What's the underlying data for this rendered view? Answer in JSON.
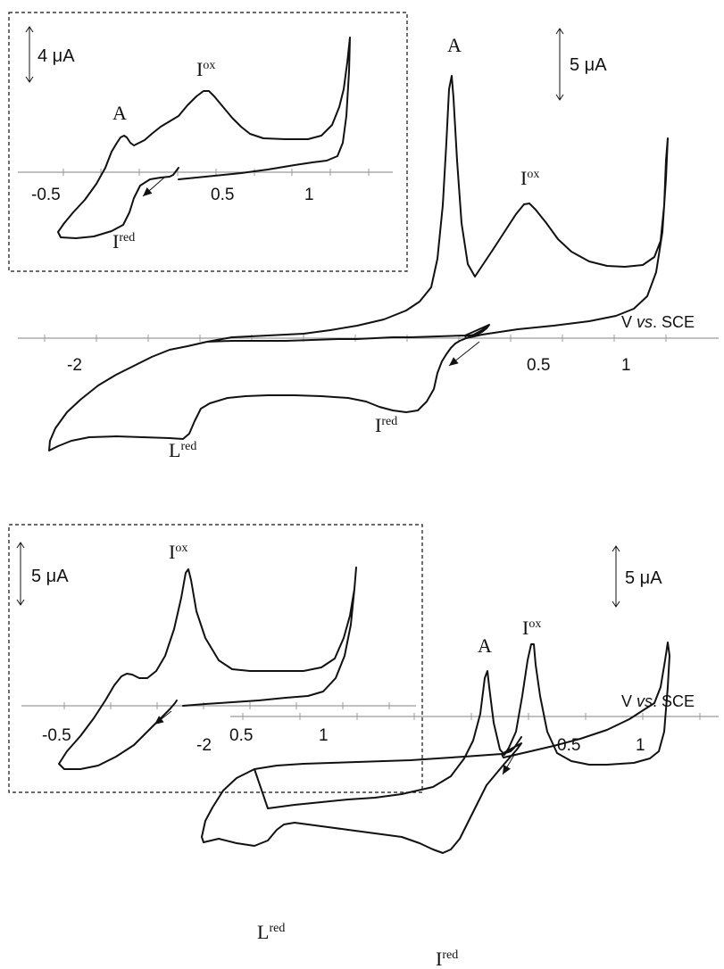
{
  "chart_data": [
    {
      "type": "line",
      "id": "top-main",
      "xlabel_prefix": "V ",
      "xlabel_italic": "vs",
      "xlabel_suffix": ". SCE",
      "ticks": [
        "-2",
        "0.5",
        "1"
      ],
      "scale_bar": "5 μA",
      "peaks": [
        {
          "base": "A",
          "sup": ""
        },
        {
          "base": "I",
          "sup": "ox"
        },
        {
          "base": "I",
          "sup": "red"
        },
        {
          "base": "L",
          "sup": "red"
        }
      ],
      "curve": [
        [
          548,
          364
        ],
        [
          545,
          368
        ],
        [
          540,
          372
        ],
        [
          536,
          374
        ],
        [
          531,
          375
        ],
        [
          527,
          376
        ],
        [
          521,
          376
        ],
        [
          460,
          378
        ],
        [
          440,
          378
        ],
        [
          420,
          379
        ],
        [
          400,
          380
        ],
        [
          378,
          380
        ],
        [
          350,
          381
        ],
        [
          320,
          382
        ],
        [
          290,
          382
        ],
        [
          260,
          382
        ],
        [
          232,
          383
        ],
        [
          210,
          388
        ],
        [
          190,
          392
        ],
        [
          170,
          400
        ],
        [
          150,
          410
        ],
        [
          130,
          420
        ],
        [
          110,
          432
        ],
        [
          90,
          448
        ],
        [
          75,
          462
        ],
        [
          62,
          480
        ],
        [
          56,
          494
        ],
        [
          55,
          505
        ],
        [
          65,
          500
        ],
        [
          80,
          494
        ],
        [
          100,
          490
        ],
        [
          130,
          489
        ],
        [
          160,
          490
        ],
        [
          190,
          491
        ],
        [
          205,
          492
        ],
        [
          212,
          486
        ],
        [
          218,
          472
        ],
        [
          225,
          458
        ],
        [
          235,
          452
        ],
        [
          255,
          446
        ],
        [
          275,
          444
        ],
        [
          300,
          443
        ],
        [
          330,
          443
        ],
        [
          360,
          444
        ],
        [
          390,
          446
        ],
        [
          410,
          450
        ],
        [
          425,
          456
        ],
        [
          440,
          460
        ],
        [
          455,
          462
        ],
        [
          468,
          460
        ],
        [
          478,
          450
        ],
        [
          486,
          436
        ],
        [
          490,
          418
        ],
        [
          495,
          405
        ],
        [
          500,
          397
        ],
        [
          505,
          390
        ],
        [
          510,
          385
        ],
        [
          515,
          382
        ],
        [
          520,
          380
        ],
        [
          527,
          377
        ],
        [
          540,
          370
        ],
        [
          548,
          364
        ],
        [
          521,
          376
        ],
        [
          522,
          379
        ],
        [
          540,
          375
        ],
        [
          580,
          369
        ],
        [
          620,
          365
        ],
        [
          660,
          360
        ],
        [
          690,
          354
        ],
        [
          710,
          346
        ],
        [
          725,
          332
        ],
        [
          735,
          305
        ],
        [
          742,
          260
        ],
        [
          746,
          200
        ],
        [
          748,
          155
        ],
        [
          746,
          180
        ],
        [
          744,
          230
        ],
        [
          740,
          270
        ],
        [
          733,
          288
        ],
        [
          720,
          297
        ],
        [
          700,
          299
        ],
        [
          680,
          298
        ],
        [
          660,
          293
        ],
        [
          640,
          282
        ],
        [
          625,
          268
        ],
        [
          612,
          250
        ],
        [
          600,
          235
        ],
        [
          593,
          228
        ],
        [
          587,
          229
        ],
        [
          578,
          240
        ],
        [
          565,
          260
        ],
        [
          552,
          280
        ],
        [
          540,
          298
        ],
        [
          532,
          310
        ],
        [
          524,
          296
        ],
        [
          517,
          250
        ],
        [
          512,
          180
        ],
        [
          508,
          110
        ],
        [
          506,
          85
        ],
        [
          503,
          100
        ],
        [
          500,
          160
        ],
        [
          496,
          230
        ],
        [
          490,
          290
        ],
        [
          483,
          322
        ],
        [
          470,
          338
        ],
        [
          455,
          348
        ],
        [
          430,
          358
        ],
        [
          400,
          365
        ],
        [
          370,
          370
        ],
        [
          340,
          374
        ],
        [
          300,
          376
        ],
        [
          260,
          378
        ],
        [
          232,
          383
        ]
      ],
      "arrow": [
        [
          537,
          383
        ],
        [
          503,
          410
        ]
      ]
    },
    {
      "type": "line",
      "id": "top-inset",
      "ticks": [
        "-0.5",
        "0.5",
        "1"
      ],
      "scale_bar": "4 μA",
      "peaks": [
        {
          "base": "A",
          "sup": ""
        },
        {
          "base": "I",
          "sup": "ox"
        },
        {
          "base": "I",
          "sup": "red"
        }
      ],
      "curve": [
        [
          200,
          188
        ],
        [
          197,
          192
        ],
        [
          194,
          196
        ],
        [
          190,
          198
        ],
        [
          180,
          199
        ],
        [
          168,
          201
        ],
        [
          157,
          208
        ],
        [
          150,
          222
        ],
        [
          145,
          238
        ],
        [
          138,
          252
        ],
        [
          125,
          259
        ],
        [
          105,
          265
        ],
        [
          85,
          267
        ],
        [
          68,
          266
        ],
        [
          65,
          260
        ],
        [
          72,
          250
        ],
        [
          82,
          238
        ],
        [
          95,
          224
        ],
        [
          108,
          206
        ],
        [
          118,
          188
        ],
        [
          125,
          170
        ],
        [
          131,
          160
        ],
        [
          135,
          154
        ],
        [
          139,
          152
        ],
        [
          142,
          154
        ],
        [
          146,
          160
        ],
        [
          150,
          163
        ],
        [
          156,
          160
        ],
        [
          162,
          157
        ],
        [
          170,
          150
        ],
        [
          180,
          142
        ],
        [
          190,
          136
        ],
        [
          200,
          130
        ],
        [
          210,
          118
        ],
        [
          220,
          108
        ],
        [
          228,
          102
        ],
        [
          234,
          102
        ],
        [
          240,
          108
        ],
        [
          250,
          120
        ],
        [
          260,
          132
        ],
        [
          270,
          142
        ],
        [
          280,
          150
        ],
        [
          295,
          155
        ],
        [
          320,
          156
        ],
        [
          345,
          156
        ],
        [
          360,
          152
        ],
        [
          372,
          140
        ],
        [
          380,
          120
        ],
        [
          385,
          100
        ],
        [
          389,
          70
        ],
        [
          392,
          42
        ],
        [
          391,
          80
        ],
        [
          388,
          130
        ],
        [
          384,
          160
        ],
        [
          378,
          175
        ],
        [
          366,
          180
        ],
        [
          350,
          182
        ],
        [
          330,
          185
        ],
        [
          300,
          190
        ],
        [
          270,
          194
        ],
        [
          230,
          198
        ],
        [
          200,
          201
        ]
      ],
      "arrow": [
        [
          184,
          199
        ],
        [
          160,
          220
        ]
      ]
    },
    {
      "type": "line",
      "id": "bottom-main",
      "xlabel_prefix": "V ",
      "xlabel_italic": "vs",
      "xlabel_suffix": ". SCE",
      "ticks": [
        "-2",
        "0.5",
        "1"
      ],
      "scale_bar": "5 μA",
      "peaks": [
        {
          "base": "A",
          "sup": ""
        },
        {
          "base": "I",
          "sup": "ox"
        },
        {
          "base": "L",
          "sup": "red"
        },
        {
          "base": "I",
          "sup": "red"
        }
      ],
      "curve": [
        [
          584,
          826
        ],
        [
          580,
          832
        ],
        [
          576,
          838
        ],
        [
          572,
          842
        ],
        [
          566,
          844
        ],
        [
          562,
          845
        ],
        [
          520,
          848
        ],
        [
          490,
          850
        ],
        [
          460,
          852
        ],
        [
          430,
          853
        ],
        [
          400,
          854
        ],
        [
          370,
          855
        ],
        [
          340,
          856
        ],
        [
          310,
          858
        ],
        [
          285,
          862
        ],
        [
          265,
          872
        ],
        [
          250,
          886
        ],
        [
          238,
          905
        ],
        [
          230,
          920
        ],
        [
          226,
          938
        ],
        [
          228,
          944
        ],
        [
          245,
          940
        ],
        [
          265,
          945
        ],
        [
          285,
          948
        ],
        [
          300,
          942
        ],
        [
          310,
          930
        ],
        [
          318,
          924
        ],
        [
          330,
          922
        ],
        [
          360,
          926
        ],
        [
          390,
          930
        ],
        [
          420,
          934
        ],
        [
          450,
          938
        ],
        [
          470,
          945
        ],
        [
          485,
          952
        ],
        [
          496,
          956
        ],
        [
          505,
          952
        ],
        [
          515,
          940
        ],
        [
          525,
          920
        ],
        [
          535,
          900
        ],
        [
          545,
          880
        ],
        [
          555,
          868
        ],
        [
          565,
          856
        ],
        [
          572,
          848
        ],
        [
          579,
          840
        ],
        [
          584,
          833
        ],
        [
          562,
          845
        ],
        [
          564,
          849
        ],
        [
          590,
          843
        ],
        [
          620,
          836
        ],
        [
          650,
          828
        ],
        [
          680,
          818
        ],
        [
          705,
          806
        ],
        [
          722,
          795
        ],
        [
          733,
          788
        ],
        [
          740,
          770
        ],
        [
          745,
          740
        ],
        [
          748,
          720
        ],
        [
          750,
          735
        ],
        [
          748,
          770
        ],
        [
          744,
          820
        ],
        [
          738,
          842
        ],
        [
          728,
          850
        ],
        [
          710,
          855
        ],
        [
          695,
          856
        ],
        [
          680,
          857
        ],
        [
          660,
          857
        ],
        [
          640,
          853
        ],
        [
          624,
          844
        ],
        [
          613,
          820
        ],
        [
          605,
          780
        ],
        [
          600,
          745
        ],
        [
          598,
          722
        ],
        [
          595,
          722
        ],
        [
          591,
          740
        ],
        [
          585,
          780
        ],
        [
          578,
          820
        ],
        [
          570,
          838
        ],
        [
          565,
          846
        ],
        [
          560,
          840
        ],
        [
          553,
          810
        ],
        [
          548,
          770
        ],
        [
          546,
          752
        ],
        [
          543,
          760
        ],
        [
          538,
          800
        ],
        [
          530,
          830
        ],
        [
          520,
          850
        ],
        [
          505,
          870
        ],
        [
          485,
          882
        ],
        [
          450,
          890
        ],
        [
          420,
          894
        ],
        [
          390,
          896
        ],
        [
          360,
          899
        ],
        [
          330,
          902
        ],
        [
          300,
          906
        ],
        [
          285,
          862
        ]
      ],
      "arrow": [
        [
          576,
          846
        ],
        [
          563,
          868
        ]
      ]
    },
    {
      "type": "line",
      "id": "bottom-inset",
      "ticks": [
        "-0.5",
        "0.5",
        "1"
      ],
      "scale_bar": "5 μA",
      "peaks": [
        {
          "base": "I",
          "sup": "ox"
        }
      ],
      "curve": [
        [
          198,
          785
        ],
        [
          196,
          788
        ],
        [
          190,
          795
        ],
        [
          180,
          805
        ],
        [
          165,
          820
        ],
        [
          150,
          835
        ],
        [
          130,
          848
        ],
        [
          110,
          858
        ],
        [
          90,
          862
        ],
        [
          72,
          862
        ],
        [
          66,
          856
        ],
        [
          75,
          842
        ],
        [
          90,
          825
        ],
        [
          105,
          805
        ],
        [
          118,
          785
        ],
        [
          128,
          768
        ],
        [
          136,
          758
        ],
        [
          142,
          755
        ],
        [
          148,
          756
        ],
        [
          156,
          760
        ],
        [
          165,
          760
        ],
        [
          175,
          752
        ],
        [
          185,
          735
        ],
        [
          195,
          705
        ],
        [
          203,
          670
        ],
        [
          208,
          642
        ],
        [
          211,
          638
        ],
        [
          214,
          650
        ],
        [
          220,
          685
        ],
        [
          230,
          715
        ],
        [
          245,
          740
        ],
        [
          260,
          750
        ],
        [
          280,
          752
        ],
        [
          310,
          752
        ],
        [
          340,
          752
        ],
        [
          360,
          748
        ],
        [
          375,
          738
        ],
        [
          385,
          715
        ],
        [
          392,
          690
        ],
        [
          397,
          660
        ],
        [
          399,
          636
        ],
        [
          397,
          660
        ],
        [
          393,
          700
        ],
        [
          386,
          735
        ],
        [
          376,
          760
        ],
        [
          362,
          775
        ],
        [
          345,
          780
        ],
        [
          320,
          782
        ],
        [
          290,
          785
        ],
        [
          260,
          787
        ],
        [
          230,
          789
        ],
        [
          205,
          791
        ]
      ],
      "arrow": [
        [
          192,
          797
        ],
        [
          173,
          812
        ]
      ]
    }
  ]
}
